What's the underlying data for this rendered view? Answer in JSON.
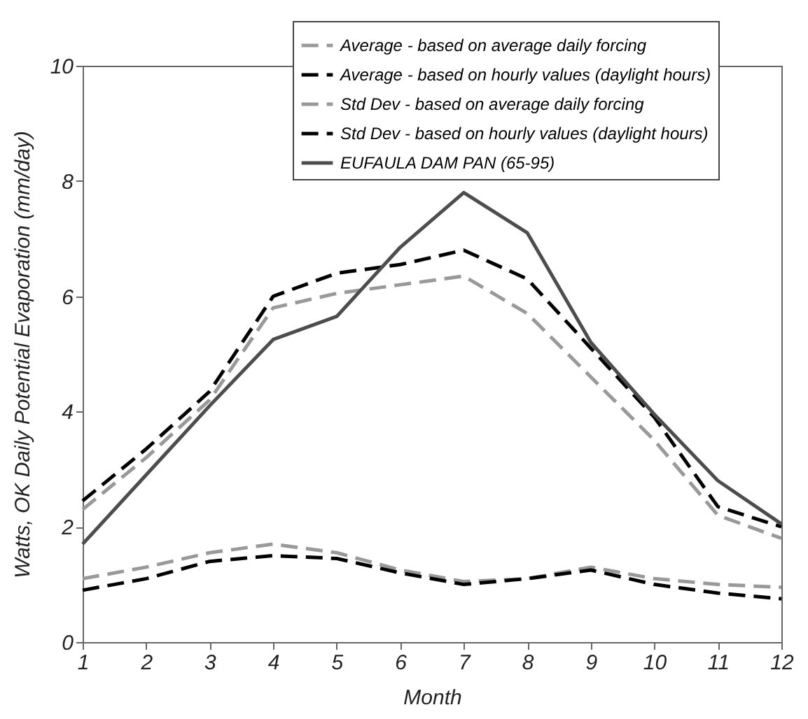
{
  "chart_data": {
    "type": "line",
    "xlabel": "Month",
    "ylabel": "Watts, OK Daily Potential Evaporation (mm/day)",
    "x": [
      1,
      2,
      3,
      4,
      5,
      6,
      7,
      8,
      9,
      10,
      11,
      12
    ],
    "xlim": [
      1,
      12
    ],
    "xticks": [
      1,
      2,
      3,
      4,
      5,
      6,
      7,
      8,
      9,
      10,
      11,
      12
    ],
    "ylim": [
      0,
      10
    ],
    "yticks": [
      0,
      2,
      4,
      6,
      8,
      10
    ],
    "grid": false,
    "legend": "top right",
    "marker": "none",
    "series": [
      {
        "name": "Average - based on average daily forcing",
        "color": "#999999",
        "line_style": "dashed",
        "values": [
          2.3,
          3.2,
          4.2,
          5.8,
          6.05,
          6.2,
          6.35,
          5.7,
          4.6,
          3.5,
          2.2,
          1.8
        ]
      },
      {
        "name": "Average - based on hourly values (daylight hours)",
        "color": "#000000",
        "line_style": "dashed",
        "values": [
          2.45,
          3.35,
          4.35,
          6.0,
          6.4,
          6.55,
          6.8,
          6.3,
          5.1,
          3.9,
          2.35,
          2.0
        ]
      },
      {
        "name": "Std Dev - based on average daily forcing",
        "color": "#999999",
        "line_style": "dashed",
        "values": [
          1.1,
          1.3,
          1.55,
          1.7,
          1.55,
          1.25,
          1.05,
          1.1,
          1.3,
          1.1,
          1.0,
          0.95
        ]
      },
      {
        "name": "Std Dev - based on hourly values (daylight hours)",
        "color": "#000000",
        "line_style": "dashed",
        "values": [
          0.9,
          1.1,
          1.4,
          1.5,
          1.45,
          1.2,
          1.0,
          1.1,
          1.25,
          1.0,
          0.85,
          0.75
        ]
      },
      {
        "name": "EUFAULA DAM PAN (65-95)",
        "color": "#4d4d4d",
        "line_style": "solid",
        "values": [
          1.7,
          2.9,
          4.1,
          5.25,
          5.65,
          6.85,
          7.8,
          7.1,
          5.2,
          3.95,
          2.8,
          2.05
        ]
      }
    ]
  }
}
